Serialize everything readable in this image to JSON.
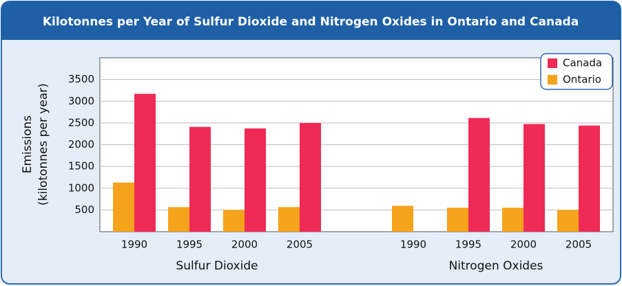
{
  "chart_data": {
    "type": "bar",
    "title": "Kilotonnes per Year of Sulfur Dioxide and Nitrogen Oxides in Ontario and Canada",
    "ylabel": [
      "Emissions",
      "(kilotonnes per year)"
    ],
    "groups": [
      "Sulfur Dioxide",
      "Nitrogen Oxides"
    ],
    "categories": [
      "1990",
      "1995",
      "2000",
      "2005",
      "1990",
      "1995",
      "2000",
      "2005"
    ],
    "series": [
      {
        "name": "Canada",
        "color": "#ee2a55",
        "values": [
          3170,
          2410,
          2375,
          2500,
          null,
          2615,
          2475,
          2440
        ]
      },
      {
        "name": "Ontario",
        "color": "#f6a31c",
        "values": [
          1130,
          565,
          500,
          565,
          595,
          550,
          550,
          500
        ]
      }
    ],
    "ylim": [
      0,
      4000
    ],
    "yticks": [
      500,
      1000,
      1500,
      2000,
      2500,
      3000,
      3500
    ],
    "grid": true,
    "legend": "top-right"
  }
}
